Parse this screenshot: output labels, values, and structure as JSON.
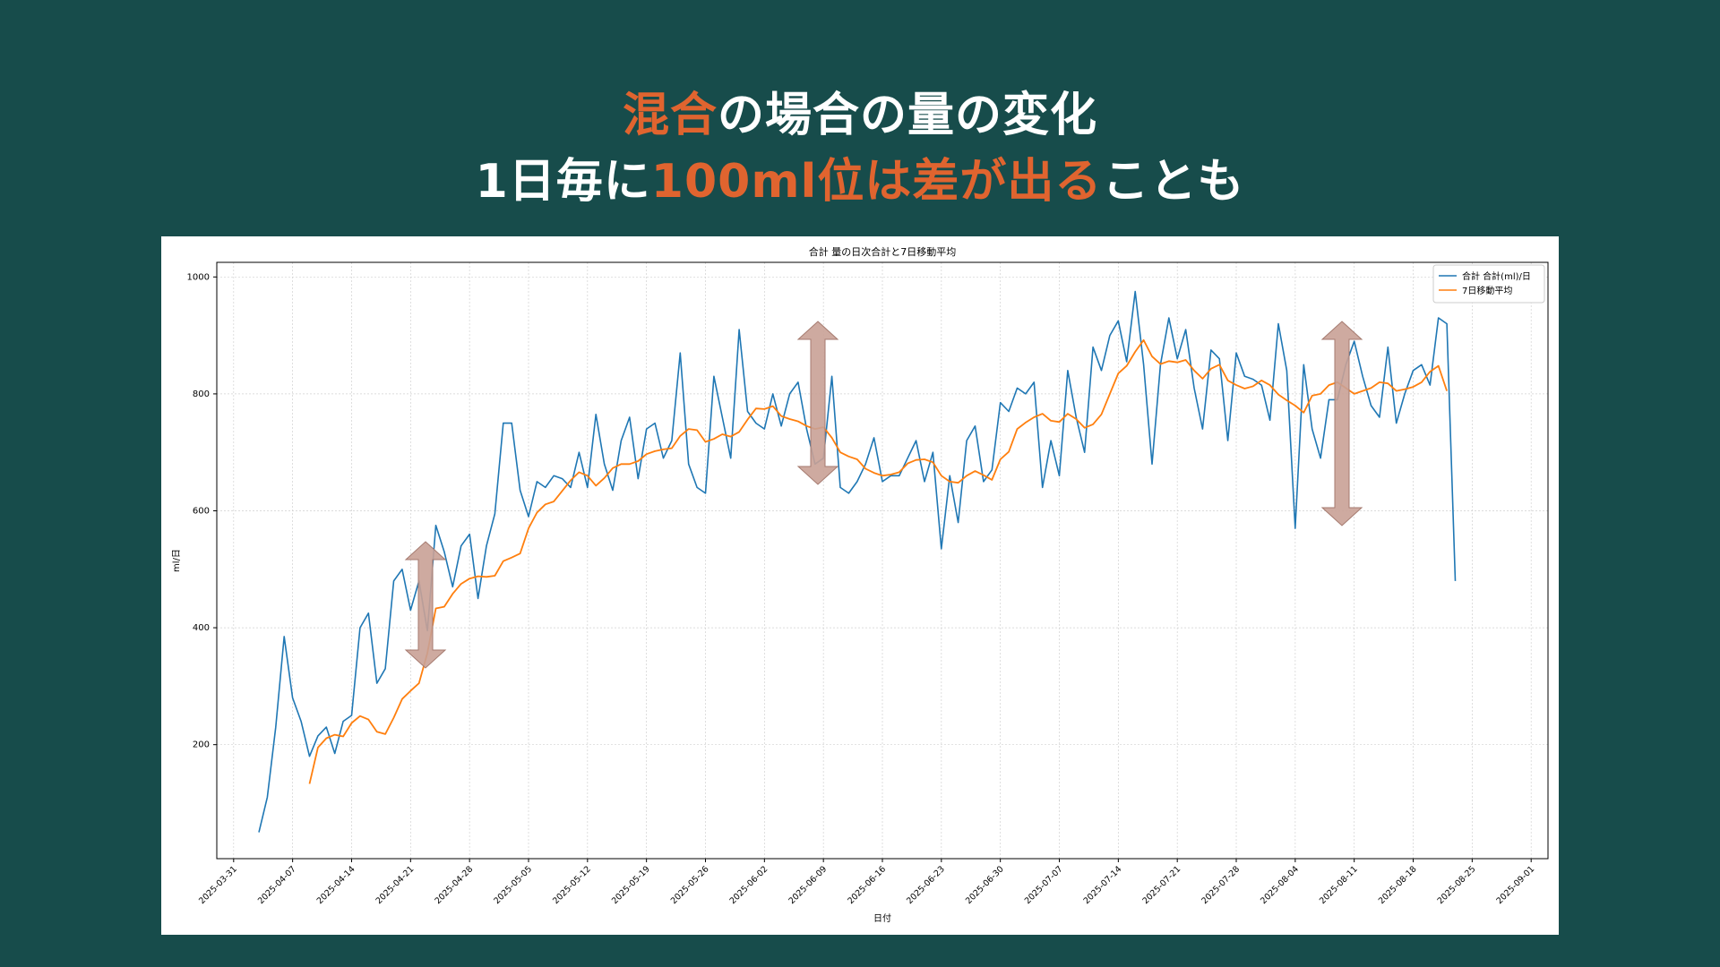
{
  "slide": {
    "title_line1": [
      {
        "text": "混合",
        "highlight": true
      },
      {
        "text": "の場合の量の変化",
        "highlight": false
      }
    ],
    "title_line2": [
      {
        "text": "1日毎に",
        "highlight": false
      },
      {
        "text": "100ml位は差が出る",
        "highlight": true
      },
      {
        "text": "ことも",
        "highlight": false
      }
    ],
    "colors": {
      "background": "#174c4b",
      "highlight": "#e0642f",
      "arrow": "#c9a196",
      "daily_line": "#1f77b4",
      "ma_line": "#ff7f0e"
    }
  },
  "chart_data": {
    "type": "line",
    "title": "合計 量の日次合計と7日移動平均",
    "xlabel": "日付",
    "ylabel": "ml/日",
    "ylim": [
      5,
      1025
    ],
    "xlim": [
      "2025-03-29",
      "2025-09-03"
    ],
    "yticks": [
      200,
      400,
      600,
      800,
      1000
    ],
    "xticks": [
      "2025-03-31",
      "2025-04-07",
      "2025-04-14",
      "2025-04-21",
      "2025-04-28",
      "2025-05-05",
      "2025-05-12",
      "2025-05-19",
      "2025-05-26",
      "2025-06-02",
      "2025-06-09",
      "2025-06-16",
      "2025-06-23",
      "2025-06-30",
      "2025-07-07",
      "2025-07-14",
      "2025-07-21",
      "2025-07-28",
      "2025-08-04",
      "2025-08-11",
      "2025-08-18",
      "2025-08-25",
      "2025-09-01"
    ],
    "grid": true,
    "legend_position": "top-right",
    "start_date": "2025-04-03",
    "series": [
      {
        "name": "合計 合計(ml)/日",
        "color": "#1f77b4",
        "values": [
          50,
          110,
          230,
          385,
          280,
          240,
          180,
          215,
          230,
          185,
          240,
          250,
          400,
          425,
          305,
          330,
          480,
          500,
          430,
          480,
          395,
          575,
          530,
          470,
          540,
          560,
          450,
          540,
          595,
          750,
          750,
          635,
          590,
          650,
          640,
          660,
          655,
          640,
          700,
          640,
          765,
          680,
          635,
          720,
          760,
          655,
          740,
          750,
          690,
          720,
          870,
          680,
          640,
          630,
          830,
          760,
          690,
          910,
          770,
          750,
          740,
          800,
          745,
          800,
          820,
          740,
          680,
          690,
          830,
          640,
          630,
          650,
          680,
          725,
          650,
          660,
          660,
          690,
          720,
          650,
          700,
          535,
          660,
          580,
          720,
          745,
          650,
          670,
          785,
          770,
          810,
          800,
          820,
          640,
          720,
          660,
          840,
          760,
          700,
          880,
          840,
          900,
          925,
          855,
          975,
          850,
          680,
          850,
          930,
          860,
          910,
          810,
          740,
          875,
          860,
          720,
          870,
          830,
          825,
          815,
          755,
          920,
          840,
          570,
          850,
          740,
          690,
          790,
          790,
          850,
          890,
          830,
          780,
          760,
          880,
          750,
          800,
          840,
          850,
          815,
          930,
          920,
          480
        ]
      },
      {
        "name": "7日移動平均",
        "color": "#ff7f0e",
        "values": [
          null,
          null,
          null,
          null,
          null,
          null,
          133,
          195,
          211,
          217,
          214,
          237,
          249,
          243,
          222,
          218,
          246,
          278,
          292,
          305,
          357,
          433,
          436,
          458,
          475,
          484,
          488,
          487,
          489,
          514,
          520,
          527,
          570,
          597,
          611,
          616,
          634,
          652,
          666,
          660,
          643,
          656,
          673,
          680,
          680,
          685,
          697,
          702,
          705,
          707,
          728,
          740,
          738,
          718,
          723,
          731,
          727,
          735,
          756,
          775,
          774,
          779,
          762,
          757,
          753,
          745,
          740,
          743,
          725,
          700,
          693,
          688,
          672,
          665,
          660,
          662,
          666,
          681,
          687,
          688,
          683,
          660,
          650,
          648,
          660,
          668,
          661,
          653,
          688,
          701,
          740,
          751,
          760,
          766,
          754,
          752,
          766,
          757,
          742,
          748,
          765,
          800,
          835,
          848,
          872,
          892,
          864,
          851,
          856,
          854,
          858,
          840,
          826,
          843,
          850,
          823,
          815,
          809,
          813,
          823,
          815,
          799,
          789,
          780,
          768,
          797,
          800,
          815,
          820,
          810,
          800,
          805,
          810,
          820,
          818,
          805,
          808,
          812,
          820,
          838,
          848,
          805
        ]
      }
    ]
  }
}
